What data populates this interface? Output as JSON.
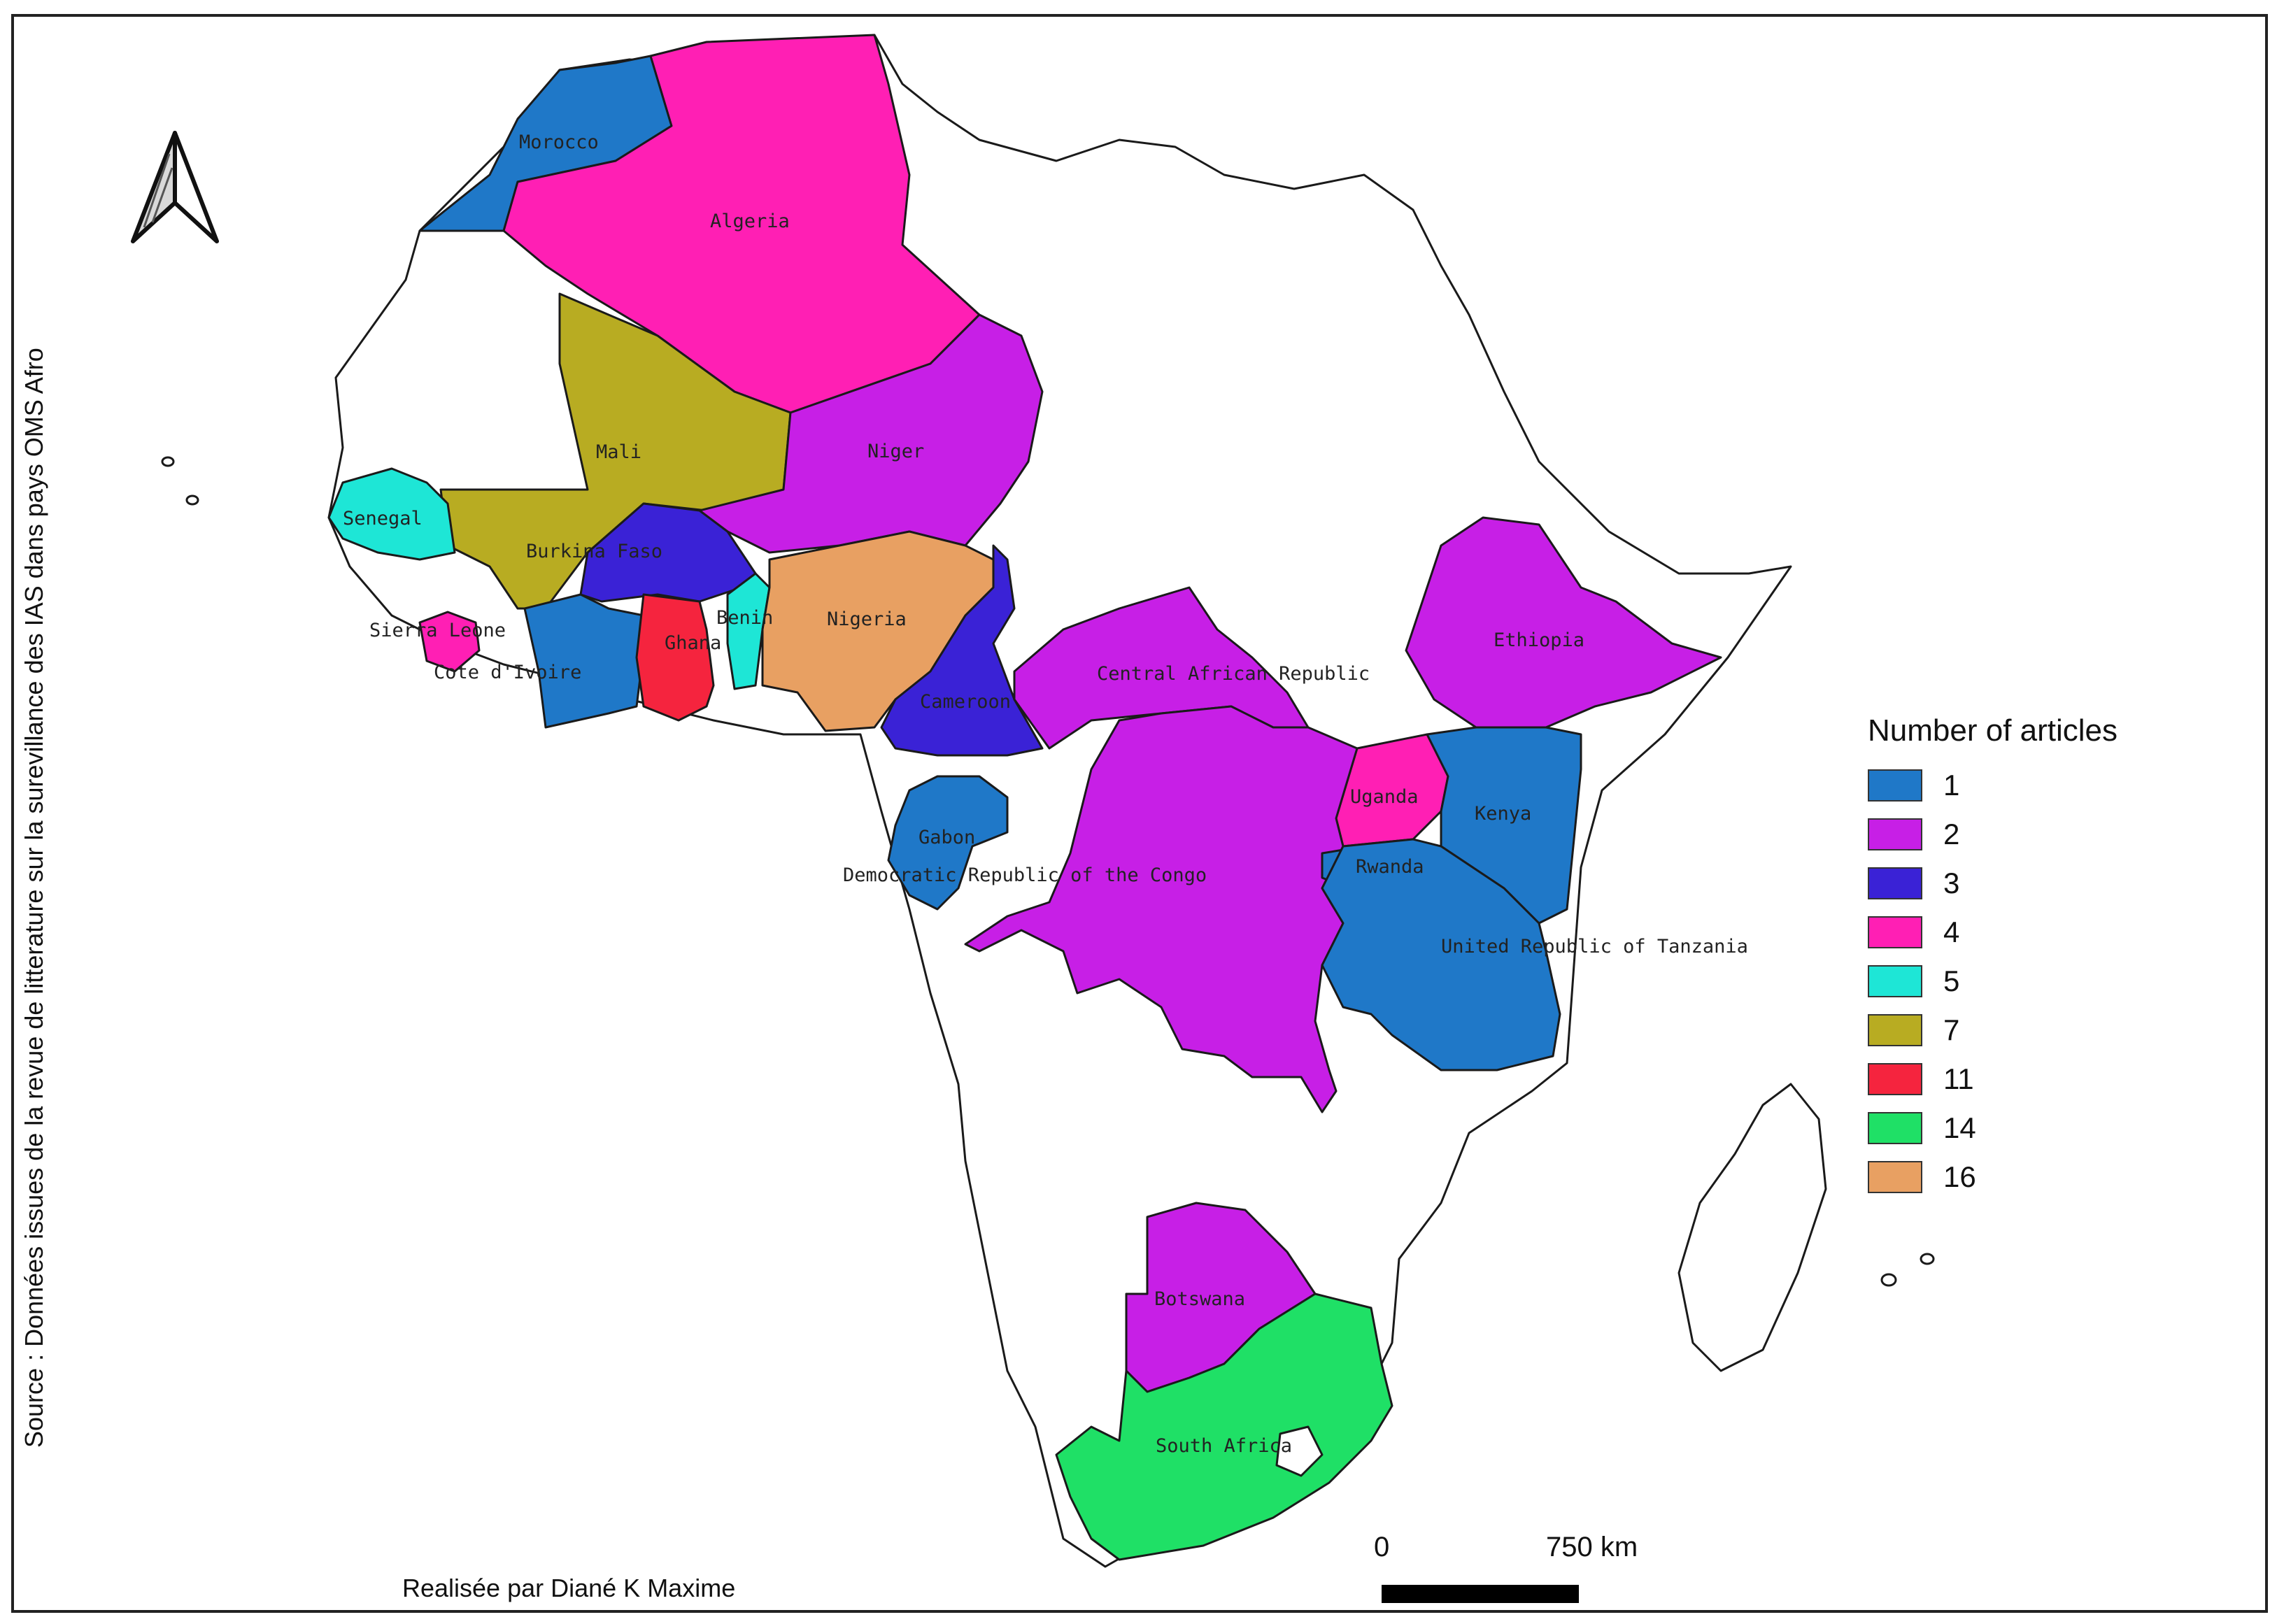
{
  "legend": {
    "title": "Number of articles",
    "items": [
      {
        "label": "1",
        "color": "#1f78c8"
      },
      {
        "label": "2",
        "color": "#c71fe6"
      },
      {
        "label": "3",
        "color": "#3a22d6"
      },
      {
        "label": "4",
        "color": "#ff1fb4"
      },
      {
        "label": "5",
        "color": "#1ee6d6"
      },
      {
        "label": "7",
        "color": "#b8ac22"
      },
      {
        "label": "11",
        "color": "#f5243e"
      },
      {
        "label": "14",
        "color": "#1fe066"
      },
      {
        "label": "16",
        "color": "#e8a062"
      }
    ]
  },
  "source_text": "Source : Données issues de la revue de litterature sur la surevillance des IAS dans pays OMS Afro",
  "author_text": "Realisée par Diané K Maxime",
  "scale": {
    "start": "0",
    "end": "750 km"
  },
  "north_arrow": "north-arrow-icon",
  "countries": [
    {
      "name": "Morocco",
      "articles": 1
    },
    {
      "name": "Algeria",
      "articles": 4
    },
    {
      "name": "Mali",
      "articles": 7
    },
    {
      "name": "Niger",
      "articles": 2
    },
    {
      "name": "Senegal",
      "articles": 5
    },
    {
      "name": "Burkina Faso",
      "articles": 3
    },
    {
      "name": "Sierra Leone",
      "articles": 4
    },
    {
      "name": "Cote d'Ivoire",
      "articles": 1
    },
    {
      "name": "Ghana",
      "articles": 11
    },
    {
      "name": "Benin",
      "articles": 5
    },
    {
      "name": "Nigeria",
      "articles": 16
    },
    {
      "name": "Cameroon",
      "articles": 3
    },
    {
      "name": "Central African Republic",
      "articles": 2
    },
    {
      "name": "Ethiopia",
      "articles": 2
    },
    {
      "name": "Uganda",
      "articles": 4
    },
    {
      "name": "Kenya",
      "articles": 1
    },
    {
      "name": "Gabon",
      "articles": 1
    },
    {
      "name": "Democratic Republic of the Congo",
      "articles": 2
    },
    {
      "name": "Rwanda",
      "articles": 1
    },
    {
      "name": "United Republic of Tanzania",
      "articles": 1
    },
    {
      "name": "Botswana",
      "articles": 2
    },
    {
      "name": "South Africa",
      "articles": 14
    }
  ]
}
